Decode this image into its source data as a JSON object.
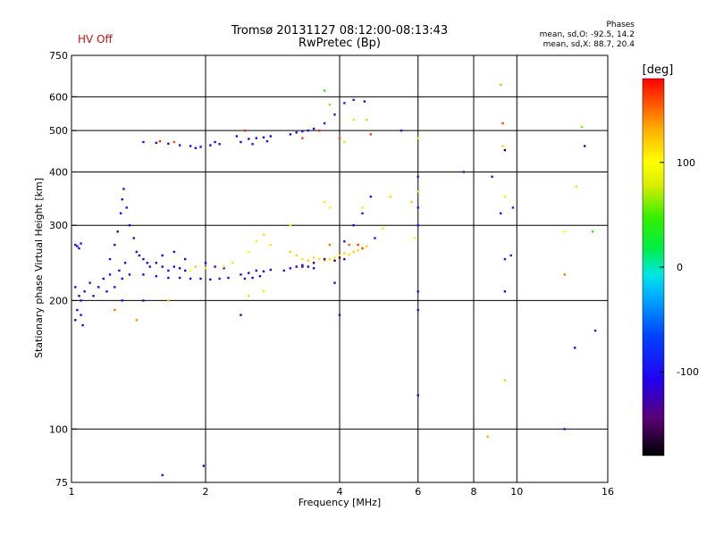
{
  "header": {
    "title_line1": "Tromsø 20131127 08:12:00-08:13:43",
    "title_line2": "RwPretec (Bp)",
    "hv_status": "HV Off",
    "phases": {
      "title": "Phases",
      "line1": "mean, sd,O: -92.5, 14.2",
      "line2": "mean, sd,X: 88.7, 20.4"
    }
  },
  "colors": {
    "hv_status": "#cc1111",
    "grid": "#000000"
  },
  "chart_data": {
    "type": "scatter",
    "title": "Tromsø 20131127 08:12:00-08:13:43",
    "subtitle": "RwPretec (Bp)",
    "xlabel": "Frequency [MHz]",
    "ylabel": "Stationary phase Virtual Height [km]",
    "x_scale": "log",
    "y_scale": "log",
    "xlim": [
      1,
      16
    ],
    "ylim": [
      75,
      750
    ],
    "x_ticks": [
      {
        "value": 1,
        "label": "1"
      },
      {
        "value": 2,
        "label": "2"
      },
      {
        "value": 4,
        "label": "4"
      },
      {
        "value": 6,
        "label": "6"
      },
      {
        "value": 8,
        "label": "8"
      },
      {
        "value": 10,
        "label": "10"
      },
      {
        "value": 16,
        "label": "16"
      }
    ],
    "x_grid": [
      2,
      4,
      6,
      8,
      10
    ],
    "y_ticks": [
      {
        "value": 75,
        "label": "75"
      },
      {
        "value": 100,
        "label": "100"
      },
      {
        "value": 200,
        "label": "200"
      },
      {
        "value": 300,
        "label": "300"
      },
      {
        "value": 400,
        "label": "400"
      },
      {
        "value": 500,
        "label": "500"
      },
      {
        "value": 600,
        "label": "600"
      },
      {
        "value": 750,
        "label": "750"
      }
    ],
    "y_grid": [
      100,
      200,
      300,
      400,
      500,
      600
    ],
    "grid": true,
    "colorbar": {
      "label": "[deg]",
      "range": [
        -180,
        180
      ],
      "ticks": [
        {
          "value": 100,
          "label": "100"
        },
        {
          "value": 0,
          "label": "0"
        },
        {
          "value": -100,
          "label": "-100"
        }
      ]
    },
    "series": [
      {
        "points": [
          [
            1.02,
            270,
            -110
          ],
          [
            1.03,
            268,
            -105
          ],
          [
            1.04,
            265,
            -100
          ],
          [
            1.05,
            272,
            -95
          ],
          [
            1.02,
            215,
            -105
          ],
          [
            1.04,
            205,
            -115
          ],
          [
            1.03,
            190,
            -120
          ],
          [
            1.05,
            185,
            -110
          ],
          [
            1.02,
            180,
            -125
          ],
          [
            1.06,
            175,
            -130
          ],
          [
            1.05,
            200,
            -110
          ],
          [
            1.07,
            210,
            -105
          ],
          [
            1.1,
            220,
            -100
          ],
          [
            1.12,
            205,
            -110
          ],
          [
            1.15,
            215,
            -105
          ],
          [
            1.18,
            225,
            -110
          ],
          [
            1.2,
            210,
            -100
          ],
          [
            1.22,
            230,
            -105
          ],
          [
            1.25,
            215,
            -110
          ],
          [
            1.28,
            235,
            -100
          ],
          [
            1.3,
            225,
            -110
          ],
          [
            1.32,
            245,
            -105
          ],
          [
            1.22,
            250,
            -100
          ],
          [
            1.25,
            270,
            -110
          ],
          [
            1.27,
            290,
            -105
          ],
          [
            1.29,
            320,
            -100
          ],
          [
            1.3,
            345,
            -110
          ],
          [
            1.31,
            365,
            -105
          ],
          [
            1.33,
            330,
            -100
          ],
          [
            1.35,
            300,
            -110
          ],
          [
            1.38,
            280,
            -105
          ],
          [
            1.4,
            260,
            -100
          ],
          [
            1.42,
            255,
            -110
          ],
          [
            1.45,
            250,
            -105
          ],
          [
            1.48,
            245,
            -110
          ],
          [
            1.5,
            240,
            -100
          ],
          [
            1.55,
            245,
            -105
          ],
          [
            1.6,
            240,
            -110
          ],
          [
            1.65,
            235,
            -100
          ],
          [
            1.7,
            240,
            -105
          ],
          [
            1.75,
            238,
            -110
          ],
          [
            1.8,
            235,
            -100
          ],
          [
            1.35,
            230,
            -105
          ],
          [
            1.45,
            230,
            -110
          ],
          [
            1.55,
            228,
            -100
          ],
          [
            1.65,
            226,
            -105
          ],
          [
            1.75,
            226,
            -110
          ],
          [
            1.85,
            225,
            -100
          ],
          [
            1.95,
            225,
            -105
          ],
          [
            2.05,
            224,
            -110
          ],
          [
            2.15,
            225,
            -100
          ],
          [
            2.25,
            226,
            -105
          ],
          [
            1.6,
            255,
            -100
          ],
          [
            1.7,
            260,
            -105
          ],
          [
            1.8,
            250,
            -110
          ],
          [
            1.9,
            240,
            -100
          ],
          [
            2.0,
            245,
            -105
          ],
          [
            2.1,
            240,
            -110
          ],
          [
            2.2,
            238,
            -100
          ],
          [
            2.4,
            230,
            -105
          ],
          [
            2.5,
            232,
            -110
          ],
          [
            2.6,
            235,
            -100
          ],
          [
            2.7,
            234,
            -105
          ],
          [
            2.8,
            236,
            -110
          ],
          [
            2.45,
            225,
            -100
          ],
          [
            2.55,
            226,
            -105
          ],
          [
            2.65,
            228,
            -110
          ],
          [
            3.0,
            235,
            -100
          ],
          [
            3.1,
            238,
            -105
          ],
          [
            3.2,
            240,
            -110
          ],
          [
            3.3,
            242,
            -100
          ],
          [
            3.4,
            240,
            -105
          ],
          [
            3.5,
            238,
            -110
          ],
          [
            1.45,
            470,
            -100
          ],
          [
            1.55,
            468,
            -105
          ],
          [
            1.65,
            466,
            -110
          ],
          [
            1.75,
            462,
            -100
          ],
          [
            1.85,
            460,
            -105
          ],
          [
            1.9,
            455,
            -110
          ],
          [
            1.95,
            458,
            -100
          ],
          [
            2.05,
            462,
            -105
          ],
          [
            2.1,
            470,
            -110
          ],
          [
            2.15,
            465,
            -100
          ],
          [
            2.4,
            470,
            -105
          ],
          [
            2.5,
            478,
            -110
          ],
          [
            2.6,
            480,
            -100
          ],
          [
            2.7,
            482,
            -105
          ],
          [
            2.8,
            485,
            -110
          ],
          [
            3.1,
            490,
            -100
          ],
          [
            3.2,
            495,
            -105
          ],
          [
            3.3,
            498,
            -110
          ],
          [
            3.4,
            500,
            -100
          ],
          [
            3.5,
            505,
            -105
          ],
          [
            2.35,
            485,
            -95
          ],
          [
            2.55,
            465,
            -100
          ],
          [
            2.75,
            472,
            -105
          ],
          [
            3.7,
            520,
            -95
          ],
          [
            3.9,
            545,
            -90
          ],
          [
            4.1,
            580,
            -90
          ],
          [
            4.3,
            590,
            -95
          ],
          [
            4.55,
            585,
            -100
          ],
          [
            5.5,
            500,
            -90
          ],
          [
            4.8,
            280,
            -95
          ],
          [
            4.7,
            350,
            -100
          ],
          [
            4.5,
            320,
            -95
          ],
          [
            4.3,
            300,
            -100
          ],
          [
            4.1,
            275,
            -95
          ],
          [
            6.0,
            300,
            -90
          ],
          [
            6.0,
            330,
            -95
          ],
          [
            6.0,
            360,
            -100
          ],
          [
            6.0,
            390,
            -95
          ],
          [
            6.0,
            210,
            -100
          ],
          [
            6.0,
            190,
            -95
          ],
          [
            6.0,
            120,
            -110
          ],
          [
            3.9,
            220,
            -100
          ],
          [
            4.0,
            185,
            -95
          ],
          [
            1.3,
            200,
            -120
          ],
          [
            1.45,
            200,
            -115
          ],
          [
            2.4,
            185,
            -110
          ],
          [
            7.6,
            400,
            -90
          ],
          [
            8.8,
            390,
            -95
          ],
          [
            9.2,
            320,
            -100
          ],
          [
            9.4,
            210,
            -120
          ],
          [
            9.4,
            250,
            -100
          ],
          [
            9.7,
            255,
            -95
          ],
          [
            9.8,
            330,
            -85
          ],
          [
            12.8,
            100,
            -90
          ],
          [
            13.5,
            155,
            -110
          ],
          [
            14.2,
            460,
            -105
          ],
          [
            15.0,
            170,
            -90
          ],
          [
            1.6,
            78,
            -95
          ],
          [
            1.98,
            82,
            -110
          ]
        ]
      },
      {
        "points": [
          [
            3.1,
            260,
            120
          ],
          [
            3.2,
            255,
            115
          ],
          [
            3.3,
            250,
            110
          ],
          [
            3.4,
            248,
            120
          ],
          [
            3.5,
            252,
            115
          ],
          [
            3.6,
            250,
            110
          ],
          [
            3.7,
            248,
            120
          ],
          [
            3.8,
            250,
            115
          ],
          [
            3.9,
            252,
            110
          ],
          [
            4.0,
            255,
            120
          ],
          [
            4.1,
            258,
            115
          ],
          [
            4.2,
            256,
            110
          ],
          [
            4.3,
            260,
            120
          ],
          [
            4.4,
            262,
            115
          ],
          [
            4.5,
            265,
            110
          ],
          [
            4.6,
            268,
            120
          ],
          [
            2.2,
            240,
            115
          ],
          [
            2.3,
            245,
            110
          ],
          [
            2.5,
            260,
            100
          ],
          [
            2.6,
            275,
            90
          ],
          [
            2.7,
            285,
            80
          ],
          [
            2.8,
            270,
            110
          ],
          [
            1.9,
            240,
            105
          ],
          [
            2.0,
            238,
            110
          ],
          [
            1.85,
            235,
            100
          ],
          [
            3.7,
            620,
            40
          ],
          [
            3.8,
            575,
            60
          ],
          [
            4.1,
            470,
            80
          ],
          [
            4.3,
            530,
            115
          ],
          [
            4.6,
            530,
            120
          ],
          [
            3.7,
            340,
            110
          ],
          [
            3.8,
            330,
            105
          ],
          [
            4.5,
            330,
            110
          ],
          [
            5.2,
            350,
            115
          ],
          [
            5.8,
            340,
            120
          ],
          [
            2.5,
            205,
            115
          ],
          [
            2.7,
            210,
            110
          ],
          [
            3.1,
            300,
            105
          ],
          [
            1.65,
            200,
            120
          ],
          [
            1.25,
            190,
            150
          ],
          [
            1.4,
            180,
            140
          ],
          [
            5.0,
            295,
            110
          ],
          [
            9.2,
            640,
            60
          ],
          [
            9.3,
            460,
            115
          ],
          [
            9.4,
            350,
            90
          ],
          [
            12.8,
            290,
            100
          ],
          [
            13.6,
            370,
            115
          ],
          [
            14.0,
            510,
            60
          ],
          [
            14.8,
            290,
            40
          ],
          [
            9.4,
            130,
            120
          ],
          [
            8.6,
            96,
            130
          ],
          [
            6.0,
            480,
            115
          ],
          [
            6.0,
            360,
            110
          ],
          [
            5.9,
            280,
            100
          ]
        ]
      },
      {
        "points": [
          [
            3.3,
            240,
            -150
          ],
          [
            3.5,
            245,
            -155
          ],
          [
            3.7,
            250,
            -150
          ],
          [
            3.9,
            248,
            -160
          ],
          [
            4.0,
            252,
            -150
          ],
          [
            4.1,
            250,
            -145
          ],
          [
            9.3,
            520,
            160
          ],
          [
            4.4,
            270,
            165
          ],
          [
            4.5,
            265,
            160
          ],
          [
            4.2,
            270,
            155
          ],
          [
            3.8,
            270,
            150
          ],
          [
            1.58,
            472,
            170
          ],
          [
            1.7,
            470,
            160
          ],
          [
            2.45,
            500,
            170
          ],
          [
            3.3,
            480,
            165
          ],
          [
            3.6,
            500,
            170
          ],
          [
            4.0,
            480,
            160
          ],
          [
            4.7,
            490,
            165
          ],
          [
            9.4,
            450,
            -170
          ],
          [
            12.8,
            230,
            150
          ]
        ]
      }
    ]
  }
}
